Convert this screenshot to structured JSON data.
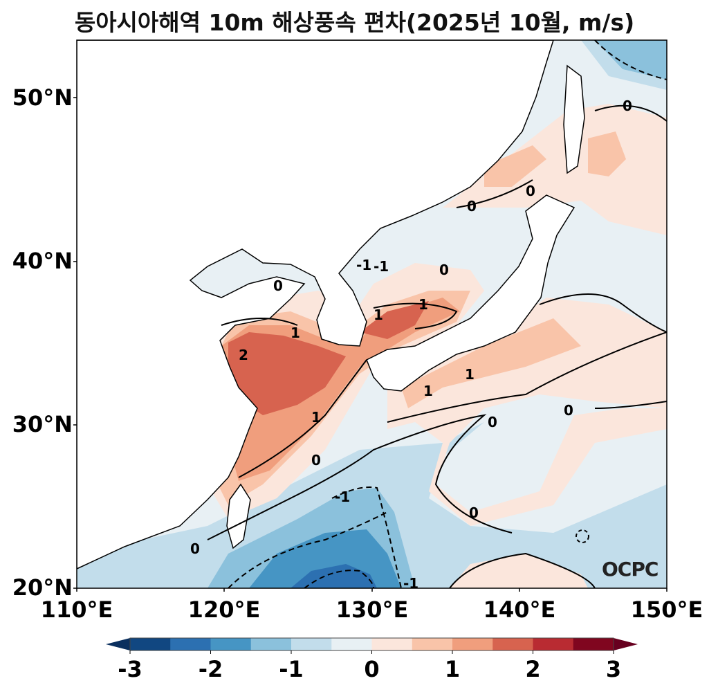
{
  "title": "동아시아해역 10m 해상풍속 편차(2025년 10월, m/s)",
  "logo": "OCPC",
  "map": {
    "type": "filled-contour",
    "lon_range": [
      110,
      150
    ],
    "lat_range": [
      20,
      53.5
    ],
    "lat_ticks": [
      "50°N",
      "40°N",
      "30°N",
      "20°N"
    ],
    "lon_ticks": [
      "110°E",
      "120°E",
      "130°E",
      "140°E",
      "150°E"
    ],
    "contour_labels": [
      "0",
      "0",
      "0",
      "-1",
      "1",
      "0",
      "1",
      "-1",
      "2",
      "1",
      "1",
      "0",
      "1",
      "1",
      "0",
      "0",
      "-1",
      "0",
      "0",
      "0",
      "-1"
    ]
  },
  "colorbar": {
    "ticks": [
      "-3",
      "-2",
      "-1",
      "0",
      "1",
      "2",
      "3"
    ],
    "levels": [
      -3,
      -2.5,
      -2,
      -1.5,
      -1,
      -0.5,
      0,
      0.5,
      1,
      1.5,
      2,
      2.5,
      3
    ],
    "extend": "both",
    "colors": [
      "#114781",
      "#2c70b1",
      "#4695c4",
      "#8bc1dc",
      "#c2ddeb",
      "#e8f0f4",
      "#fbe6dc",
      "#f9c4a9",
      "#f09e7d",
      "#d7634f",
      "#b92b32",
      "#80061f"
    ],
    "under": "#0a2f5e",
    "over": "#67001f"
  }
}
